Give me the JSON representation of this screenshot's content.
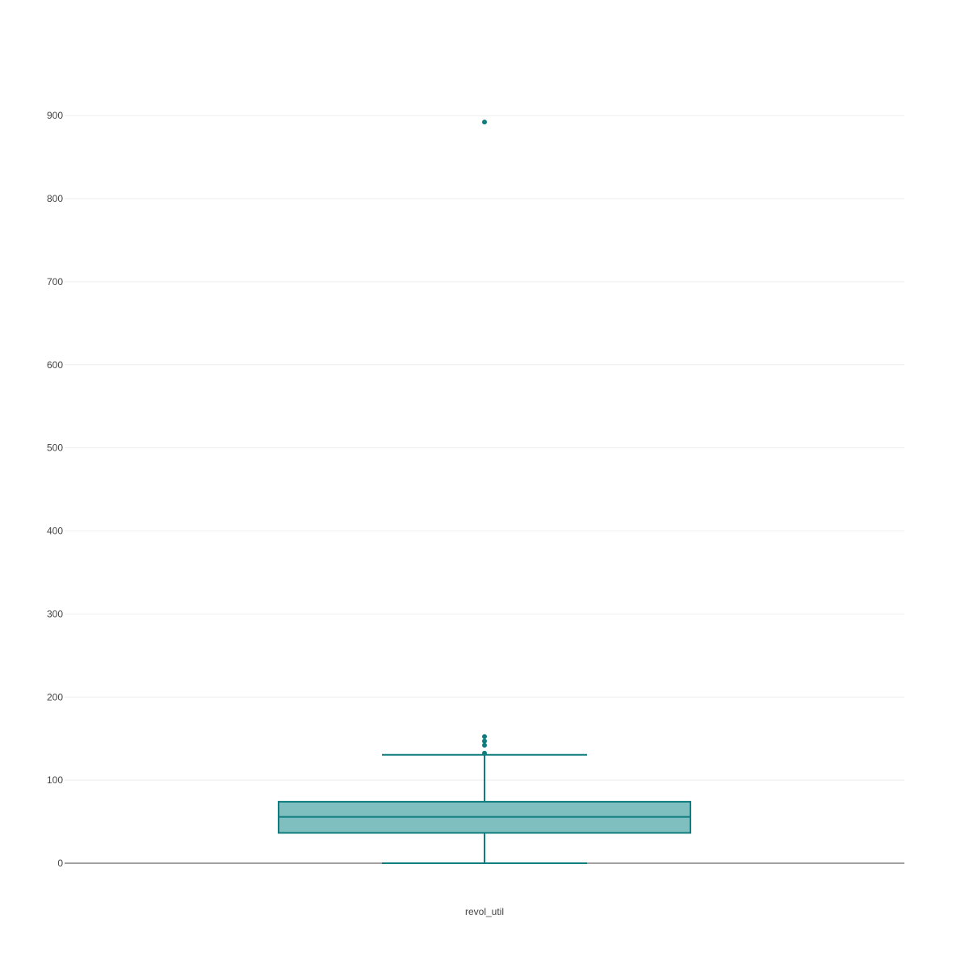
{
  "chart_data": {
    "type": "box",
    "categories": [
      "revol_util"
    ],
    "series": [
      {
        "category": "revol_util",
        "whisker_low": 0,
        "q1": 36.5,
        "median": 55.8,
        "q3": 74,
        "whisker_high": 130.5,
        "outliers": [
          132.5,
          142,
          147,
          152.5,
          892.3
        ]
      }
    ],
    "ylim": [
      -10,
      970
    ],
    "yticks": [
      0,
      100,
      200,
      300,
      400,
      500,
      600,
      700,
      800,
      900
    ],
    "ytick_labels": [
      "0",
      "100",
      "200",
      "300",
      "400",
      "500",
      "600",
      "700",
      "800",
      "900"
    ],
    "grid": true,
    "legend": "none",
    "colors": {
      "box_line": "#0f7d7d",
      "box_fill": "#80bfbf",
      "outlier": "#0f7d7d",
      "grid": "#eeeeee",
      "zero_line": "#444444"
    }
  }
}
